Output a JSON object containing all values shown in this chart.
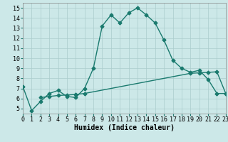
{
  "xlabel": "Humidex (Indice chaleur)",
  "x": [
    0,
    1,
    2,
    3,
    4,
    5,
    6,
    7,
    8,
    9,
    10,
    11,
    12,
    13,
    14,
    15,
    16,
    17,
    18,
    19,
    20,
    21,
    22,
    23
  ],
  "line1_y": [
    7.2,
    4.8,
    5.7,
    6.5,
    6.8,
    6.2,
    6.1,
    7.0,
    9.0,
    13.2,
    14.3,
    13.5,
    14.5,
    15.0,
    14.3,
    13.5,
    11.8,
    9.8,
    9.0,
    8.6,
    8.8,
    7.9,
    6.5,
    6.5
  ],
  "line2_x": [
    2,
    3,
    4,
    5,
    6,
    7,
    19,
    20,
    21,
    22,
    23
  ],
  "line2_y": [
    6.1,
    6.2,
    6.3,
    6.35,
    6.4,
    6.5,
    8.5,
    8.55,
    8.6,
    8.65,
    6.5
  ],
  "xlim": [
    0,
    23
  ],
  "ylim": [
    4.5,
    15.5
  ],
  "yticks": [
    5,
    6,
    7,
    8,
    9,
    10,
    11,
    12,
    13,
    14,
    15
  ],
  "xticks": [
    0,
    1,
    2,
    3,
    4,
    5,
    6,
    7,
    8,
    9,
    10,
    11,
    12,
    13,
    14,
    15,
    16,
    17,
    18,
    19,
    20,
    21,
    22,
    23
  ],
  "line_color": "#1a7a6e",
  "bg_color": "#cce8e8",
  "grid_color": "#aacccc",
  "markersize": 2.5,
  "linewidth": 1.0,
  "xlabel_fontsize": 7,
  "tick_fontsize": 6
}
